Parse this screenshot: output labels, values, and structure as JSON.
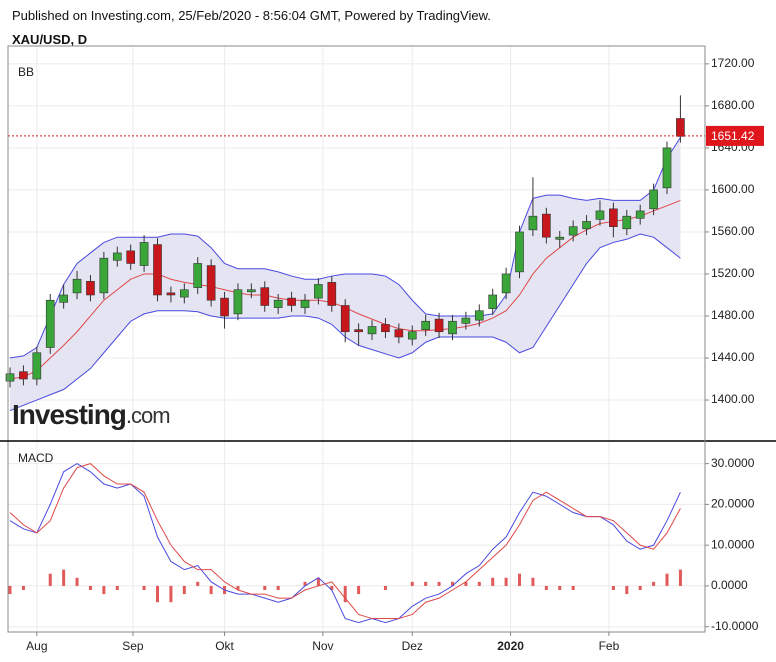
{
  "header": {
    "published": "Published on Investing.com, 25/Feb/2020 - 8:56:04 GMT, Powered by TradingView.",
    "symbol": "XAU/USD, D"
  },
  "logo": {
    "brand": "Investing",
    "suffix": ".com"
  },
  "chart_data": [
    {
      "type": "candlestick",
      "label": "BB",
      "x": [
        0,
        3,
        6,
        9,
        12,
        15,
        18,
        21,
        24,
        27,
        30,
        33,
        36,
        39,
        42,
        45,
        48,
        51,
        54,
        57,
        60,
        63,
        66,
        69,
        72,
        75,
        78,
        81,
        84,
        87,
        90,
        93,
        96,
        99,
        102,
        105,
        108,
        111,
        114,
        117,
        120,
        123,
        126,
        129,
        132,
        135,
        138,
        141,
        144,
        147,
        150
      ],
      "open": [
        1418,
        1427,
        1420,
        1450,
        1493,
        1502,
        1513,
        1502,
        1533,
        1542,
        1528,
        1548,
        1502,
        1498,
        1507,
        1528,
        1497,
        1482,
        1503,
        1507,
        1488,
        1497,
        1488,
        1497,
        1512,
        1490,
        1467,
        1463,
        1472,
        1467,
        1458,
        1467,
        1477,
        1463,
        1473,
        1476,
        1487,
        1502,
        1522,
        1562,
        1577,
        1553,
        1557,
        1563,
        1572,
        1582,
        1563,
        1573,
        1582,
        1602,
        1668
      ],
      "high": [
        1431,
        1433,
        1451,
        1501,
        1510,
        1523,
        1519,
        1541,
        1546,
        1548,
        1557,
        1554,
        1508,
        1511,
        1536,
        1534,
        1503,
        1511,
        1511,
        1513,
        1501,
        1503,
        1501,
        1516,
        1518,
        1496,
        1473,
        1476,
        1478,
        1473,
        1471,
        1481,
        1483,
        1481,
        1484,
        1491,
        1506,
        1526,
        1566,
        1612,
        1583,
        1561,
        1571,
        1576,
        1590,
        1588,
        1581,
        1586,
        1606,
        1646,
        1690
      ],
      "low": [
        1412,
        1414,
        1414,
        1444,
        1487,
        1496,
        1494,
        1496,
        1527,
        1524,
        1522,
        1494,
        1493,
        1492,
        1501,
        1489,
        1468,
        1476,
        1497,
        1484,
        1482,
        1484,
        1482,
        1491,
        1484,
        1455,
        1452,
        1457,
        1459,
        1454,
        1452,
        1461,
        1459,
        1457,
        1467,
        1470,
        1481,
        1496,
        1516,
        1556,
        1549,
        1545,
        1551,
        1557,
        1566,
        1555,
        1557,
        1567,
        1576,
        1596,
        1645
      ],
      "close": [
        1425,
        1420,
        1445,
        1495,
        1500,
        1515,
        1500,
        1535,
        1540,
        1530,
        1550,
        1500,
        1500,
        1505,
        1530,
        1495,
        1480,
        1505,
        1505,
        1490,
        1495,
        1490,
        1495,
        1510,
        1490,
        1465,
        1465,
        1470,
        1465,
        1460,
        1465,
        1475,
        1465,
        1475,
        1478,
        1485,
        1500,
        1520,
        1560,
        1575,
        1555,
        1555,
        1565,
        1570,
        1580,
        1565,
        1575,
        1580,
        1600,
        1640,
        1651
      ],
      "up_color": "#3aa63a",
      "down_color": "#c8161d",
      "bands": {
        "fill": "#e4e4f3",
        "band_color": "#4a4ae0",
        "middle_color": "#e04848",
        "upper": [
          1440,
          1442,
          1450,
          1480,
          1510,
          1530,
          1540,
          1550,
          1555,
          1555,
          1555,
          1555,
          1558,
          1558,
          1556,
          1545,
          1530,
          1525,
          1525,
          1525,
          1522,
          1518,
          1515,
          1515,
          1518,
          1520,
          1520,
          1520,
          1518,
          1510,
          1495,
          1482,
          1480,
          1480,
          1480,
          1480,
          1482,
          1500,
          1560,
          1592,
          1595,
          1595,
          1592,
          1590,
          1592,
          1590,
          1590,
          1590,
          1600,
          1630,
          1650
        ],
        "middle": [
          1420,
          1422,
          1428,
          1440,
          1452,
          1465,
          1480,
          1495,
          1505,
          1515,
          1520,
          1520,
          1515,
          1512,
          1510,
          1508,
          1505,
          1502,
          1500,
          1500,
          1497,
          1495,
          1495,
          1495,
          1493,
          1488,
          1482,
          1477,
          1472,
          1468,
          1466,
          1466,
          1467,
          1468,
          1470,
          1473,
          1478,
          1485,
          1500,
          1520,
          1535,
          1545,
          1555,
          1562,
          1568,
          1570,
          1572,
          1575,
          1580,
          1585,
          1590
        ],
        "lower": [
          1390,
          1395,
          1400,
          1405,
          1410,
          1420,
          1430,
          1445,
          1460,
          1475,
          1482,
          1485,
          1485,
          1485,
          1484,
          1480,
          1478,
          1478,
          1478,
          1478,
          1478,
          1480,
          1480,
          1478,
          1472,
          1460,
          1452,
          1448,
          1444,
          1440,
          1445,
          1455,
          1460,
          1460,
          1460,
          1460,
          1460,
          1455,
          1445,
          1450,
          1470,
          1490,
          1510,
          1530,
          1545,
          1550,
          1553,
          1558,
          1555,
          1545,
          1535
        ]
      },
      "last_price": 1651.42,
      "last_price_color": "#e0161d",
      "xlim": [
        -0.45,
        155.5
      ],
      "ylim": [
        1361,
        1737
      ],
      "yticks": [
        {
          "value": 1400,
          "label": "1400.00"
        },
        {
          "value": 1440,
          "label": "1440.00"
        },
        {
          "value": 1480,
          "label": "1480.00"
        },
        {
          "value": 1520,
          "label": "1520.00"
        },
        {
          "value": 1560,
          "label": "1560.00"
        },
        {
          "value": 1600,
          "label": "1600.00"
        },
        {
          "value": 1640,
          "label": "1640.00"
        },
        {
          "value": 1680,
          "label": "1680.00"
        },
        {
          "value": 1720,
          "label": "1720.00"
        }
      ],
      "grid": true
    },
    {
      "type": "macd",
      "label": "MACD",
      "x": [
        0,
        3,
        6,
        9,
        12,
        15,
        18,
        21,
        24,
        27,
        30,
        33,
        36,
        39,
        42,
        45,
        48,
        51,
        54,
        57,
        60,
        63,
        66,
        69,
        72,
        75,
        78,
        81,
        84,
        87,
        90,
        93,
        96,
        99,
        102,
        105,
        108,
        111,
        114,
        117,
        120,
        123,
        126,
        129,
        132,
        135,
        138,
        141,
        144,
        147,
        150
      ],
      "series": [
        {
          "color": "#4a4ae0",
          "values": [
            16,
            14,
            13,
            20,
            28,
            30,
            28,
            25,
            24,
            25,
            22,
            12,
            6,
            4,
            5,
            1,
            -1,
            -2,
            -2,
            -3,
            -4,
            -3,
            0,
            2,
            -1,
            -8,
            -9,
            -8,
            -9,
            -8,
            -5,
            -3,
            -2,
            0,
            3,
            5,
            9,
            12,
            18,
            23,
            22,
            20,
            18,
            17,
            17,
            15,
            11,
            9,
            10,
            16,
            23
          ]
        },
        {
          "color": "#e04848",
          "values": [
            18,
            15,
            13,
            16,
            24,
            29,
            30,
            27,
            25,
            25,
            23,
            16,
            10,
            6,
            4,
            4,
            1,
            -1,
            -2,
            -2,
            -3,
            -3,
            -1,
            0,
            1,
            -3,
            -7,
            -8,
            -8,
            -8,
            -7,
            -4,
            -3,
            -1,
            1,
            4,
            7,
            10,
            15,
            21,
            23,
            21,
            19,
            17,
            17,
            16,
            13,
            10,
            9,
            13,
            19
          ]
        }
      ],
      "histogram": {
        "color": "#e05a5a",
        "values": [
          -2,
          -1,
          0,
          3,
          4,
          2,
          -1,
          -2,
          -1,
          0,
          -1,
          -4,
          -4,
          -2,
          1,
          -2,
          -2,
          -1,
          0,
          -1,
          -1,
          0,
          1,
          2,
          -1,
          -4,
          -2,
          0,
          -1,
          0,
          1,
          1,
          1,
          1,
          1,
          1,
          2,
          2,
          3,
          2,
          -1,
          -1,
          -1,
          0,
          0,
          -1,
          -2,
          -1,
          1,
          3,
          4
        ]
      },
      "xlim": [
        -0.45,
        155.5
      ],
      "ylim": [
        -11.3,
        35.3
      ],
      "yticks": [
        {
          "value": -10,
          "label": "-10.0000"
        },
        {
          "value": 0,
          "label": "0.0000"
        },
        {
          "value": 10,
          "label": "10.0000"
        },
        {
          "value": 20,
          "label": "20.0000"
        },
        {
          "value": 30,
          "label": "30.0000"
        }
      ],
      "xticks": [
        {
          "value": 6,
          "label": "Aug"
        },
        {
          "value": 27.5,
          "label": "Sep"
        },
        {
          "value": 48,
          "label": "Okt"
        },
        {
          "value": 70,
          "label": "Nov"
        },
        {
          "value": 90,
          "label": "Dez"
        },
        {
          "value": 112,
          "label": "2020"
        },
        {
          "value": 134,
          "label": "Feb"
        }
      ],
      "grid": true
    }
  ]
}
